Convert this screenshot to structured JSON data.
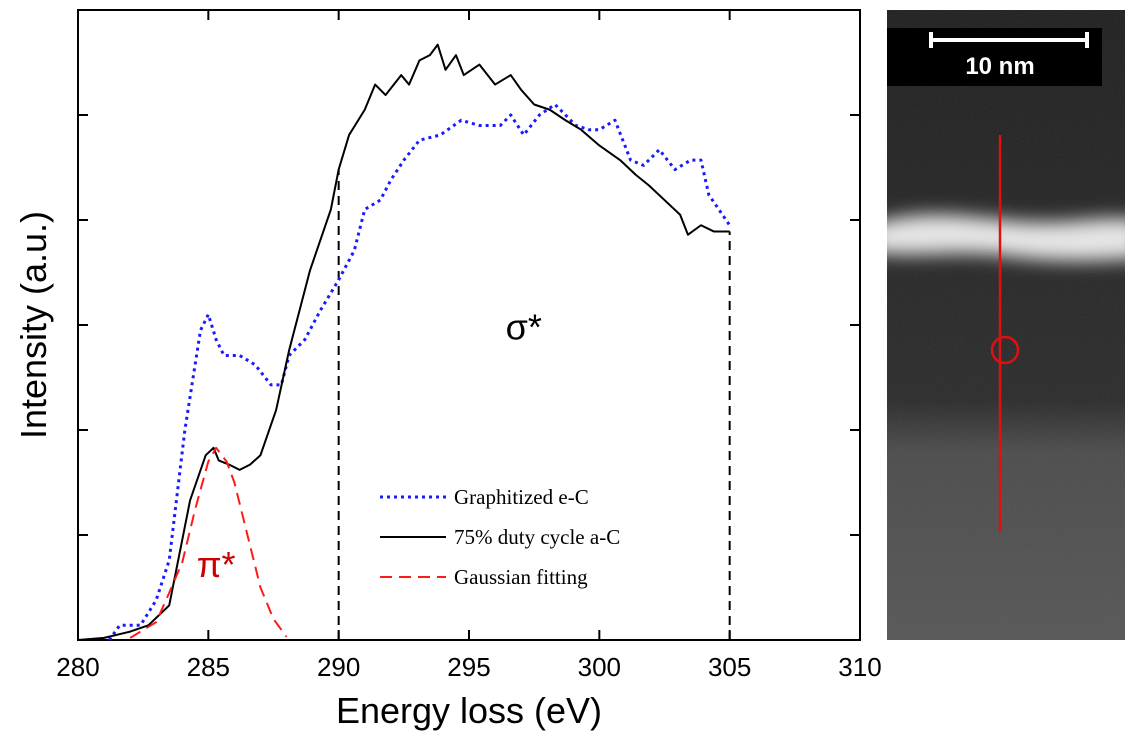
{
  "chart_data": {
    "type": "line",
    "xlabel": "Energy loss (eV)",
    "ylabel": "Intensity (a.u.)",
    "xlim": [
      280,
      310
    ],
    "xticks": [
      280,
      285,
      290,
      295,
      300,
      305,
      310
    ],
    "ylim": [
      0,
      6
    ],
    "yticks": [
      0,
      1,
      2,
      3,
      4,
      5,
      6
    ],
    "legend_loc": "lower center",
    "series": [
      {
        "name": "Graphitized e-C",
        "color": "#1a1aff",
        "style": "dotted",
        "x": [
          281.2,
          281.6,
          282.4,
          283,
          283.5,
          284.1,
          284.7,
          285,
          285.3,
          285.6,
          286.2,
          286.8,
          287.4,
          287.8,
          288.1,
          288.7,
          289.3,
          290,
          290.6,
          291,
          291.6,
          292,
          292.5,
          293.1,
          293.9,
          294.7,
          295.4,
          296.2,
          296.6,
          297.1,
          297.7,
          298.3,
          299.1,
          299.6,
          300,
          300.6,
          301.2,
          301.7,
          302.3,
          302.9,
          303.5,
          303.9,
          304.2,
          305
        ],
        "values": [
          0,
          0.14,
          0.14,
          0.38,
          0.76,
          2,
          2.95,
          3.1,
          2.86,
          2.71,
          2.71,
          2.62,
          2.43,
          2.43,
          2.71,
          2.86,
          3.14,
          3.43,
          3.71,
          4.1,
          4.19,
          4.38,
          4.57,
          4.76,
          4.81,
          4.95,
          4.9,
          4.9,
          5,
          4.81,
          5,
          5.1,
          4.9,
          4.86,
          4.86,
          4.95,
          4.57,
          4.52,
          4.67,
          4.48,
          4.57,
          4.57,
          4.24,
          3.95
        ]
      },
      {
        "name": "75% duty cycle a-C",
        "color": "#000000",
        "style": "solid",
        "x": [
          280,
          281,
          282,
          282.7,
          283.5,
          284.3,
          284.9,
          285.2,
          285.4,
          285.8,
          286.2,
          286.6,
          287,
          287.6,
          288.1,
          288.9,
          289.7,
          290,
          290.4,
          291,
          291.4,
          291.8,
          292.4,
          292.7,
          293.1,
          293.5,
          293.8,
          294.1,
          294.5,
          294.8,
          295.4,
          296,
          296.6,
          297,
          297.5,
          298.1,
          298.7,
          299.3,
          300,
          300.8,
          301.4,
          301.9,
          302.5,
          303.1,
          303.4,
          303.9,
          304.4,
          305
        ],
        "values": [
          0,
          0.02,
          0.08,
          0.14,
          0.33,
          1.33,
          1.76,
          1.83,
          1.71,
          1.67,
          1.62,
          1.67,
          1.76,
          2.19,
          2.76,
          3.52,
          4.1,
          4.48,
          4.81,
          5.05,
          5.29,
          5.19,
          5.38,
          5.29,
          5.52,
          5.57,
          5.67,
          5.43,
          5.57,
          5.38,
          5.48,
          5.29,
          5.38,
          5.24,
          5.1,
          5.05,
          4.95,
          4.86,
          4.71,
          4.57,
          4.43,
          4.33,
          4.19,
          4.05,
          3.86,
          3.95,
          3.89,
          3.89
        ]
      },
      {
        "name": "Gaussian fitting",
        "color": "#ff1a1a",
        "style": "dashed",
        "x": [
          282,
          283,
          283.5,
          284,
          284.5,
          285,
          285.3,
          285.7,
          286,
          286.5,
          287,
          287.5,
          288
        ],
        "values": [
          0.02,
          0.17,
          0.45,
          0.74,
          1.25,
          1.7,
          1.83,
          1.7,
          1.5,
          1,
          0.5,
          0.2,
          0.03
        ]
      }
    ],
    "vlines": [
      {
        "x": 290,
        "top": 4.48
      },
      {
        "x": 305,
        "top": 3.89
      }
    ],
    "annotations": [
      {
        "text": "σ*",
        "x": 297.1,
        "y": 2.86,
        "color": "#000000"
      },
      {
        "text": "π*",
        "x": 285.3,
        "y": 0.6,
        "color": "#cc0000"
      }
    ]
  },
  "image": {
    "scale_bar_label": "10 nm"
  }
}
